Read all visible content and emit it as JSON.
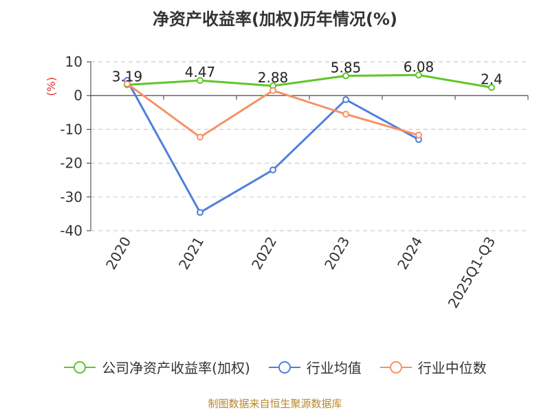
{
  "chart_data": {
    "type": "line",
    "title": "净资产收益率(加权)历年情况(%)",
    "ylabel": "(%)",
    "xlabel": "",
    "categories": [
      "2020",
      "2021",
      "2022",
      "2023",
      "2024",
      "2025Q1-Q3"
    ],
    "ylim": [
      -40,
      10
    ],
    "yticks": [
      10,
      0,
      -10,
      -20,
      -30,
      -40
    ],
    "grid": true,
    "legend_position": "bottom",
    "series": [
      {
        "name": "公司净资产收益率(加权)",
        "color": "#5cc726",
        "values": [
          3.19,
          4.47,
          2.88,
          5.85,
          6.08,
          2.4
        ],
        "labels": [
          "3.19",
          "4.47",
          "2.88",
          "5.85",
          "6.08",
          "2.4"
        ]
      },
      {
        "name": "行业均值",
        "color": "#4f7fdc",
        "values": [
          4.5,
          -34.6,
          -22.0,
          -1.2,
          -13.0,
          null
        ]
      },
      {
        "name": "行业中位数",
        "color": "#f79163",
        "values": [
          3.5,
          -12.3,
          1.5,
          -5.5,
          -11.7,
          null
        ]
      }
    ]
  },
  "source": "制图数据来自恒生聚源数据库"
}
